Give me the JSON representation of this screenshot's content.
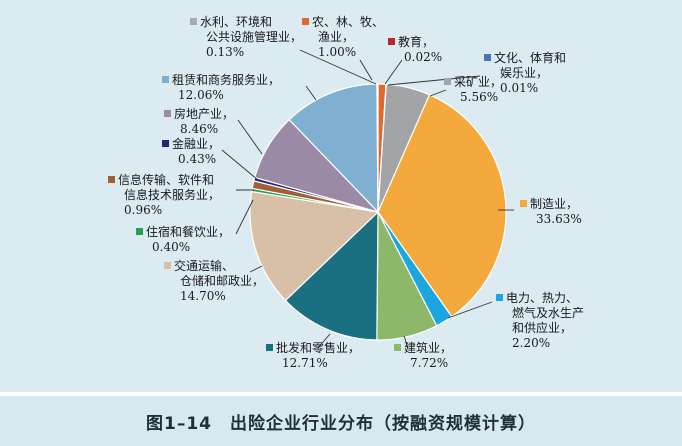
{
  "caption": {
    "figure_number": "图1–14",
    "title": "出险企业行业分布（按融资规模计算）"
  },
  "chart_data": {
    "type": "pie",
    "title": "",
    "unit": "%",
    "start_angle_deg": 0,
    "direction": "clockwise",
    "slices": [
      {
        "label_lines": [
          "农、林、牧、",
          "渔业，"
        ],
        "value_text": "1.00%",
        "value": 1.0,
        "color": "#e2692e"
      },
      {
        "label_lines": [
          "教育，"
        ],
        "value_text": "0.02%",
        "value": 0.02,
        "color": "#b5282c"
      },
      {
        "label_lines": [
          "文化、体育和",
          "娱乐业，"
        ],
        "value_text": "0.01%",
        "value": 0.01,
        "color": "#4a74b8"
      },
      {
        "label_lines": [
          "采矿业，"
        ],
        "value_text": "5.56%",
        "value": 5.56,
        "color": "#a2a4a6"
      },
      {
        "label_lines": [
          "制造业，"
        ],
        "value_text": "33.63%",
        "value": 33.63,
        "color": "#f3a93c"
      },
      {
        "label_lines": [
          "电力、热力、",
          "燃气及水生产",
          "和供应业，"
        ],
        "value_text": "2.20%",
        "value": 2.2,
        "color": "#1ba6e0"
      },
      {
        "label_lines": [
          "建筑业，"
        ],
        "value_text": "7.72%",
        "value": 7.72,
        "color": "#8db86a"
      },
      {
        "label_lines": [
          "批发和零售业，"
        ],
        "value_text": "12.71%",
        "value": 12.71,
        "color": "#1a7080"
      },
      {
        "label_lines": [
          "交通运输、",
          "仓储和邮政业，"
        ],
        "value_text": "14.70%",
        "value": 14.7,
        "color": "#d7c0a6"
      },
      {
        "label_lines": [
          "住宿和餐饮业，"
        ],
        "value_text": "0.40%",
        "value": 0.4,
        "color": "#26a050"
      },
      {
        "label_lines": [
          "信息传输、软件和",
          "信息技术服务业，"
        ],
        "value_text": "0.96%",
        "value": 0.96,
        "color": "#a25f35"
      },
      {
        "label_lines": [
          "金融业，"
        ],
        "value_text": "0.43%",
        "value": 0.43,
        "color": "#25237a"
      },
      {
        "label_lines": [
          "房地产业，"
        ],
        "value_text": "8.46%",
        "value": 8.46,
        "color": "#9a8aa6"
      },
      {
        "label_lines": [
          "租赁和商务服务业，"
        ],
        "value_text": "12.06%",
        "value": 12.06,
        "color": "#7fb0d2"
      },
      {
        "label_lines": [
          "水利、环境和",
          "公共设施管理业，"
        ],
        "value_text": "0.13%",
        "value": 0.13,
        "color": "#a9aaaa"
      }
    ]
  }
}
